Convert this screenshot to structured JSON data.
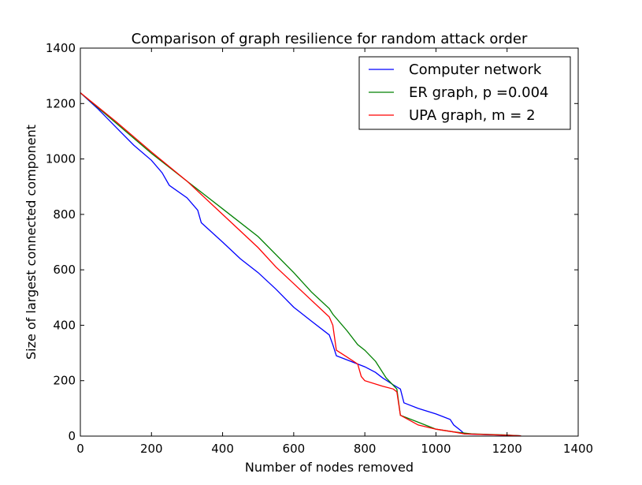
{
  "chart_data": {
    "type": "line",
    "title": "Comparison of graph resilience for random attack order",
    "xlabel": "Number of nodes removed",
    "ylabel": "Size of largest connected component",
    "xlim": [
      0,
      1400
    ],
    "ylim": [
      0,
      1400
    ],
    "xticks": [
      0,
      200,
      400,
      600,
      800,
      1000,
      1200,
      1400
    ],
    "yticks": [
      0,
      200,
      400,
      600,
      800,
      1000,
      1200,
      1400
    ],
    "grid": false,
    "legend_position": "top-right",
    "series": [
      {
        "name": "Computer network",
        "color": "#0000ff",
        "points": [
          [
            0,
            1239
          ],
          [
            50,
            1180
          ],
          [
            100,
            1115
          ],
          [
            150,
            1050
          ],
          [
            200,
            995
          ],
          [
            230,
            950
          ],
          [
            250,
            905
          ],
          [
            300,
            860
          ],
          [
            330,
            815
          ],
          [
            340,
            770
          ],
          [
            400,
            700
          ],
          [
            450,
            640
          ],
          [
            500,
            590
          ],
          [
            550,
            530
          ],
          [
            600,
            465
          ],
          [
            650,
            415
          ],
          [
            700,
            365
          ],
          [
            710,
            330
          ],
          [
            720,
            290
          ],
          [
            750,
            275
          ],
          [
            780,
            260
          ],
          [
            800,
            250
          ],
          [
            830,
            230
          ],
          [
            850,
            210
          ],
          [
            880,
            185
          ],
          [
            900,
            170
          ],
          [
            910,
            120
          ],
          [
            950,
            100
          ],
          [
            1000,
            80
          ],
          [
            1020,
            70
          ],
          [
            1040,
            60
          ],
          [
            1050,
            40
          ],
          [
            1070,
            20
          ],
          [
            1080,
            8
          ],
          [
            1150,
            5
          ],
          [
            1200,
            3
          ],
          [
            1239,
            1
          ]
        ]
      },
      {
        "name": "ER graph, p =0.004",
        "color": "#008000",
        "points": [
          [
            0,
            1239
          ],
          [
            100,
            1130
          ],
          [
            200,
            1020
          ],
          [
            300,
            920
          ],
          [
            400,
            820
          ],
          [
            500,
            720
          ],
          [
            600,
            590
          ],
          [
            650,
            520
          ],
          [
            700,
            460
          ],
          [
            710,
            440
          ],
          [
            750,
            380
          ],
          [
            780,
            330
          ],
          [
            800,
            310
          ],
          [
            830,
            270
          ],
          [
            860,
            210
          ],
          [
            890,
            170
          ],
          [
            900,
            75
          ],
          [
            950,
            50
          ],
          [
            1000,
            25
          ],
          [
            1050,
            15
          ],
          [
            1100,
            8
          ],
          [
            1200,
            4
          ],
          [
            1239,
            1
          ]
        ]
      },
      {
        "name": "UPA graph, m = 2",
        "color": "#ff0000",
        "points": [
          [
            0,
            1239
          ],
          [
            100,
            1135
          ],
          [
            200,
            1025
          ],
          [
            300,
            920
          ],
          [
            350,
            860
          ],
          [
            400,
            800
          ],
          [
            450,
            740
          ],
          [
            500,
            680
          ],
          [
            550,
            610
          ],
          [
            600,
            550
          ],
          [
            650,
            490
          ],
          [
            700,
            430
          ],
          [
            710,
            400
          ],
          [
            720,
            310
          ],
          [
            750,
            285
          ],
          [
            780,
            260
          ],
          [
            790,
            215
          ],
          [
            800,
            200
          ],
          [
            850,
            180
          ],
          [
            880,
            170
          ],
          [
            890,
            160
          ],
          [
            900,
            75
          ],
          [
            950,
            40
          ],
          [
            1000,
            25
          ],
          [
            1050,
            15
          ],
          [
            1080,
            8
          ],
          [
            1200,
            3
          ],
          [
            1239,
            1
          ]
        ]
      }
    ]
  }
}
